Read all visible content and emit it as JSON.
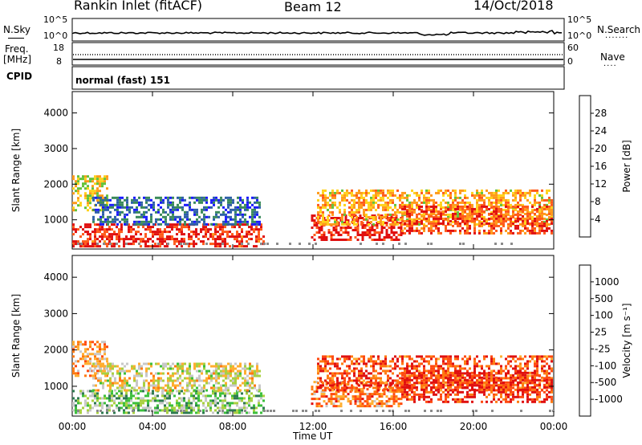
{
  "header": {
    "station": "Rankin Inlet (fitACF)",
    "beam": "Beam 12",
    "date": "14/Oct/2018"
  },
  "top_panels": {
    "nsky_label": "N.Sky",
    "nsearch_label": "N.Search",
    "nsky_ticks": [
      "10^5",
      "10^0"
    ],
    "nsearch_ticks": [
      "10^5",
      "10^0"
    ],
    "freq_label_1": "Freq.",
    "freq_label_2": "[MHz]",
    "freq_ticks": [
      "18",
      "8"
    ],
    "nave_label": "Nave",
    "nave_ticks": [
      "60",
      "0"
    ],
    "cpid_label": "CPID",
    "cpid_value": "normal (fast) 151"
  },
  "colors": {
    "power": [
      "#1a1aff",
      "#2d5fa8",
      "#3a8a5a",
      "#62c23a",
      "#ffd21a",
      "#ff9a1a",
      "#ff5a1a",
      "#e01010"
    ],
    "velocity": [
      "#e01010",
      "#ff4a10",
      "#ff7a10",
      "#ffae30",
      "#c8c8c8",
      "#a8d040",
      "#3cbf3c",
      "#2e7a50",
      "#2860a0",
      "#1a1ad8"
    ]
  },
  "chart_data": [
    {
      "type": "heatmap",
      "title": "",
      "xlabel": "Time UT",
      "ylabel": "Slant Range [km]",
      "x_ticks": [
        "00:00",
        "04:00",
        "08:00",
        "12:00",
        "16:00",
        "20:00",
        "00:00"
      ],
      "y_ticks": [
        "1000",
        "2000",
        "3000",
        "4000"
      ],
      "xlim": [
        0,
        24
      ],
      "ylim": [
        180,
        4600
      ],
      "colorbar": {
        "label": "Power [dB]",
        "ticks": [
          "4",
          "8",
          "12",
          "16",
          "20",
          "24",
          "28"
        ],
        "range": [
          0,
          30
        ]
      },
      "regions": [
        {
          "t0": 0.0,
          "t1": 1.8,
          "r0": 1300,
          "r1": 2250,
          "level": 0.55
        },
        {
          "t0": 0.0,
          "t1": 9.6,
          "r0": 250,
          "r1": 900,
          "level": 0.92
        },
        {
          "t0": 1.0,
          "t1": 9.4,
          "r0": 900,
          "r1": 1650,
          "level": 0.2
        },
        {
          "t0": 11.9,
          "t1": 16.4,
          "r0": 450,
          "r1": 1150,
          "level": 0.95
        },
        {
          "t0": 12.2,
          "t1": 23.9,
          "r0": 900,
          "r1": 1850,
          "level": 0.65
        },
        {
          "t0": 16.4,
          "t1": 23.9,
          "r0": 600,
          "r1": 1400,
          "level": 0.85
        }
      ]
    },
    {
      "type": "heatmap",
      "title": "",
      "xlabel": "Time UT",
      "ylabel": "Slant Range [km]",
      "x_ticks": [
        "00:00",
        "04:00",
        "08:00",
        "12:00",
        "16:00",
        "20:00",
        "00:00"
      ],
      "y_ticks": [
        "1000",
        "2000",
        "3000",
        "4000"
      ],
      "xlim": [
        0,
        24
      ],
      "ylim": [
        180,
        4600
      ],
      "colorbar": {
        "label": "Velocity [m s⁻¹]",
        "ticks": [
          "1000",
          "500",
          "100",
          "25",
          "-25",
          "-100",
          "-500",
          "-1000"
        ],
        "range": [
          -1000,
          1000
        ]
      },
      "regions": [
        {
          "t0": 0.0,
          "t1": 1.8,
          "r0": 1300,
          "r1": 2250,
          "level": 0.3
        },
        {
          "t0": 0.0,
          "t1": 9.6,
          "r0": 250,
          "r1": 900,
          "level": 0.6
        },
        {
          "t0": 1.0,
          "t1": 9.4,
          "r0": 900,
          "r1": 1650,
          "level": 0.45
        },
        {
          "t0": 11.9,
          "t1": 16.4,
          "r0": 450,
          "r1": 1150,
          "level": 0.25
        },
        {
          "t0": 12.2,
          "t1": 23.9,
          "r0": 900,
          "r1": 1850,
          "level": 0.15
        },
        {
          "t0": 16.4,
          "t1": 23.9,
          "r0": 600,
          "r1": 1400,
          "level": 0.1
        }
      ]
    }
  ]
}
